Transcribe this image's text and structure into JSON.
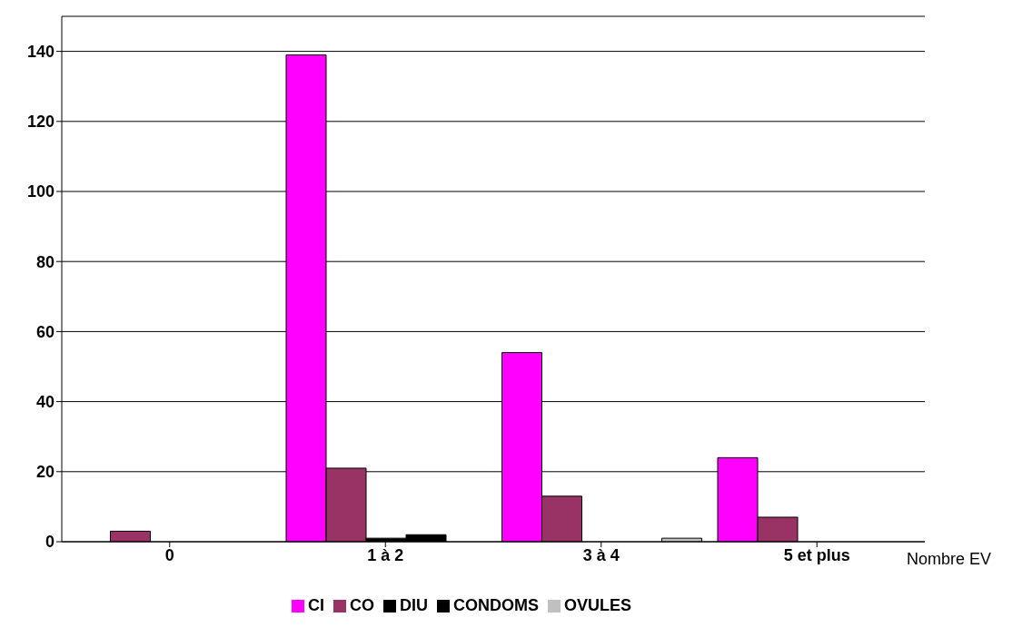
{
  "chart_data": {
    "type": "bar",
    "xlabel": "Nombre EV",
    "categories": [
      "0",
      "1 à 2",
      "3 à 4",
      "5 et plus"
    ],
    "series": [
      {
        "name": "CI",
        "color": "#ff00ff",
        "values": [
          0,
          139,
          54,
          24
        ]
      },
      {
        "name": "CO",
        "color": "#993366",
        "values": [
          3,
          21,
          13,
          7
        ]
      },
      {
        "name": "DIU",
        "color": "#000000",
        "values": [
          0,
          1,
          0,
          0
        ]
      },
      {
        "name": "CONDOMS",
        "color": "#000000",
        "values": [
          0,
          2,
          0,
          0
        ]
      },
      {
        "name": "OVULES",
        "color": "#c0c0c0",
        "values": [
          0,
          0,
          1,
          0
        ]
      }
    ],
    "ylim": [
      0,
      150
    ],
    "yticks": [
      0,
      20,
      40,
      60,
      80,
      100,
      120,
      140
    ],
    "grid": "y",
    "legend": "bottom"
  }
}
